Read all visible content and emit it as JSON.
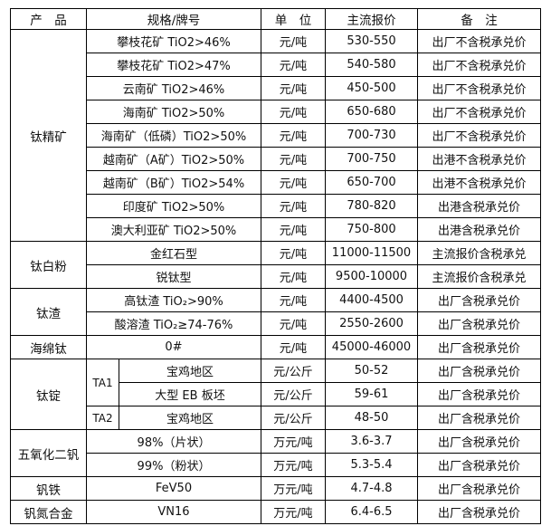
{
  "table": {
    "header": {
      "product": "产　品",
      "spec": "规格/牌号",
      "unit": "单　位",
      "price": "主流报价",
      "note": "备　注"
    },
    "groups": [
      {
        "product": "钛精矿",
        "rows": [
          {
            "spec": "攀枝花矿 TiO2>46%",
            "unit": "元/吨",
            "price": "530-550",
            "note": "出厂不含税承兑价"
          },
          {
            "spec": "攀枝花矿 TiO2>47%",
            "unit": "元/吨",
            "price": "540-580",
            "note": "出厂不含税承兑价"
          },
          {
            "spec": "云南矿 TiO2>46%",
            "unit": "元/吨",
            "price": "450-500",
            "note": "出厂不含税承兑价"
          },
          {
            "spec": "海南矿 TiO2>50%",
            "unit": "元/吨",
            "price": "650-680",
            "note": "出厂不含税承兑价"
          },
          {
            "spec": "海南矿（低磷）TiO2>50%",
            "unit": "元/吨",
            "price": "700-730",
            "note": "出厂不含税承兑价"
          },
          {
            "spec": "越南矿（A矿）TiO2>50%",
            "unit": "元/吨",
            "price": "700-750",
            "note": "出港不含税承兑价"
          },
          {
            "spec": "越南矿（B矿）TiO2>54%",
            "unit": "元/吨",
            "price": "650-700",
            "note": "出港不含税承兑价"
          },
          {
            "spec": "印度矿 TiO2>50%",
            "unit": "元/吨",
            "price": "780-820",
            "note": "出港含税承兑价"
          },
          {
            "spec": "澳大利亚矿 TiO2>50%",
            "unit": "元/吨",
            "price": "750-800",
            "note": "出港含税承兑价"
          }
        ]
      },
      {
        "product": "钛白粉",
        "rows": [
          {
            "spec": "金红石型",
            "unit": "元/吨",
            "price": "11000-11500",
            "note": "主流报价含税承兑"
          },
          {
            "spec": "锐钛型",
            "unit": "元/吨",
            "price": "9500-10000",
            "note": "主流报价含税承兑"
          }
        ]
      },
      {
        "product": "钛渣",
        "rows": [
          {
            "spec": "高钛渣 TiO₂>90%",
            "unit": "元/吨",
            "price": "4400-4500",
            "note": "出厂含税承兑价"
          },
          {
            "spec": "酸溶渣 TiO₂≥74-76%",
            "unit": "元/吨",
            "price": "2550-2600",
            "note": "出厂含税承兑价"
          }
        ]
      },
      {
        "product": "海绵钛",
        "rows": [
          {
            "spec": "0#",
            "unit": "元/吨",
            "price": "45000-46000",
            "note": "出厂含税承兑价"
          }
        ]
      },
      {
        "product": "钛锭",
        "rows": [
          {
            "grade": "TA1",
            "grade_rowspan": 2,
            "spec": "宝鸡地区",
            "unit": "元/公斤",
            "price": "50-52",
            "note": "出厂含税承兑价"
          },
          {
            "spec": "大型 EB 板坯",
            "unit": "元/公斤",
            "price": "59-61",
            "note": "出厂含税承兑价"
          },
          {
            "grade": "TA2",
            "grade_rowspan": 1,
            "spec": "宝鸡地区",
            "unit": "元/公斤",
            "price": "48-50",
            "note": "出厂含税承兑价"
          }
        ]
      },
      {
        "product": "五氧化二钒",
        "rows": [
          {
            "spec": "98%（片状）",
            "unit": "万元/吨",
            "price": "3.6-3.7",
            "note": "出厂含税承兑价"
          },
          {
            "spec": "99%（粉状）",
            "unit": "万元/吨",
            "price": "5.3-5.4",
            "note": "出厂含税承兑价"
          }
        ]
      },
      {
        "product": "钒铁",
        "rows": [
          {
            "spec": "FeV50",
            "unit": "万元/吨",
            "price": "4.7-4.8",
            "note": "出厂含税承兑价"
          }
        ]
      },
      {
        "product": "钒氮合金",
        "rows": [
          {
            "spec": "VN16",
            "unit": "万元/吨",
            "price": "6.4-6.5",
            "note": "出厂含税承兑价"
          }
        ]
      }
    ]
  }
}
